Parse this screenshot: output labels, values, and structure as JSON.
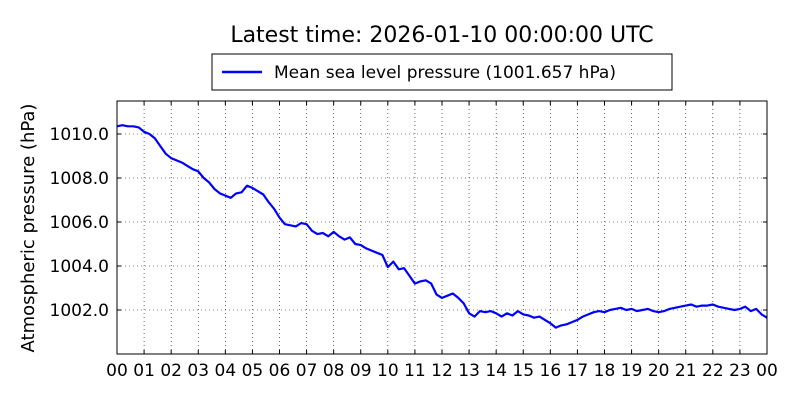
{
  "chart_data": {
    "type": "line",
    "title": "Latest time: 2026-01-10 00:00:00 UTC",
    "xlabel": "",
    "ylabel": "Atmospheric pressure (hPa)",
    "x_ticks": [
      "00",
      "01",
      "02",
      "03",
      "04",
      "05",
      "06",
      "07",
      "08",
      "09",
      "10",
      "11",
      "12",
      "13",
      "14",
      "15",
      "16",
      "17",
      "18",
      "19",
      "20",
      "21",
      "22",
      "23",
      "00"
    ],
    "xlim": [
      0,
      24
    ],
    "y_ticks": [
      "1002.0",
      "1004.0",
      "1006.0",
      "1008.0",
      "1010.0"
    ],
    "ylim": [
      1000.0,
      1011.5
    ],
    "grid": true,
    "legend_position": "top-center",
    "series": [
      {
        "name": "Mean sea level pressure (1001.657 hPa)",
        "color": "#0000ff",
        "x": [
          0,
          0.2,
          0.4,
          0.6,
          0.8,
          1.0,
          1.2,
          1.4,
          1.6,
          1.8,
          2.0,
          2.2,
          2.4,
          2.6,
          2.8,
          3.0,
          3.2,
          3.4,
          3.6,
          3.8,
          4.0,
          4.2,
          4.4,
          4.6,
          4.8,
          5.0,
          5.2,
          5.4,
          5.6,
          5.8,
          6.0,
          6.2,
          6.4,
          6.6,
          6.8,
          7.0,
          7.2,
          7.4,
          7.6,
          7.8,
          8.0,
          8.2,
          8.4,
          8.6,
          8.8,
          9.0,
          9.2,
          9.4,
          9.6,
          9.8,
          10.0,
          10.2,
          10.4,
          10.6,
          10.8,
          11.0,
          11.2,
          11.4,
          11.6,
          11.8,
          12.0,
          12.2,
          12.4,
          12.6,
          12.8,
          13.0,
          13.2,
          13.4,
          13.6,
          13.8,
          14.0,
          14.2,
          14.4,
          14.6,
          14.8,
          15.0,
          15.2,
          15.4,
          15.6,
          15.8,
          16.0,
          16.2,
          16.4,
          16.6,
          16.8,
          17.0,
          17.2,
          17.4,
          17.6,
          17.8,
          18.0,
          18.2,
          18.4,
          18.6,
          18.8,
          19.0,
          19.2,
          19.4,
          19.6,
          19.8,
          20.0,
          20.2,
          20.4,
          20.6,
          20.8,
          21.0,
          21.2,
          21.4,
          21.6,
          21.8,
          22.0,
          22.2,
          22.4,
          22.6,
          22.8,
          23.0,
          23.2,
          23.4,
          23.6,
          23.8,
          24.0
        ],
        "y": [
          1010.35,
          1010.4,
          1010.35,
          1010.35,
          1010.3,
          1010.1,
          1010.0,
          1009.8,
          1009.45,
          1009.1,
          1008.9,
          1008.8,
          1008.7,
          1008.55,
          1008.4,
          1008.3,
          1008.0,
          1007.8,
          1007.5,
          1007.3,
          1007.2,
          1007.1,
          1007.3,
          1007.35,
          1007.65,
          1007.55,
          1007.4,
          1007.25,
          1006.9,
          1006.6,
          1006.2,
          1005.9,
          1005.85,
          1005.8,
          1005.95,
          1005.9,
          1005.6,
          1005.45,
          1005.5,
          1005.35,
          1005.55,
          1005.35,
          1005.2,
          1005.3,
          1005.0,
          1004.95,
          1004.8,
          1004.7,
          1004.6,
          1004.5,
          1003.95,
          1004.2,
          1003.85,
          1003.9,
          1003.55,
          1003.2,
          1003.3,
          1003.35,
          1003.2,
          1002.7,
          1002.55,
          1002.65,
          1002.75,
          1002.55,
          1002.3,
          1001.85,
          1001.7,
          1001.95,
          1001.9,
          1001.95,
          1001.85,
          1001.7,
          1001.85,
          1001.75,
          1001.95,
          1001.8,
          1001.75,
          1001.65,
          1001.7,
          1001.55,
          1001.4,
          1001.2,
          1001.3,
          1001.35,
          1001.45,
          1001.55,
          1001.7,
          1001.8,
          1001.9,
          1001.95,
          1001.9,
          1002.0,
          1002.05,
          1002.1,
          1002.0,
          1002.05,
          1001.95,
          1002.0,
          1002.05,
          1001.95,
          1001.9,
          1001.95,
          1002.05,
          1002.1,
          1002.15,
          1002.2,
          1002.25,
          1002.15,
          1002.2,
          1002.2,
          1002.25,
          1002.15,
          1002.1,
          1002.05,
          1002.0,
          1002.05,
          1002.15,
          1001.95,
          1002.05,
          1001.8,
          1001.65
        ]
      }
    ]
  }
}
